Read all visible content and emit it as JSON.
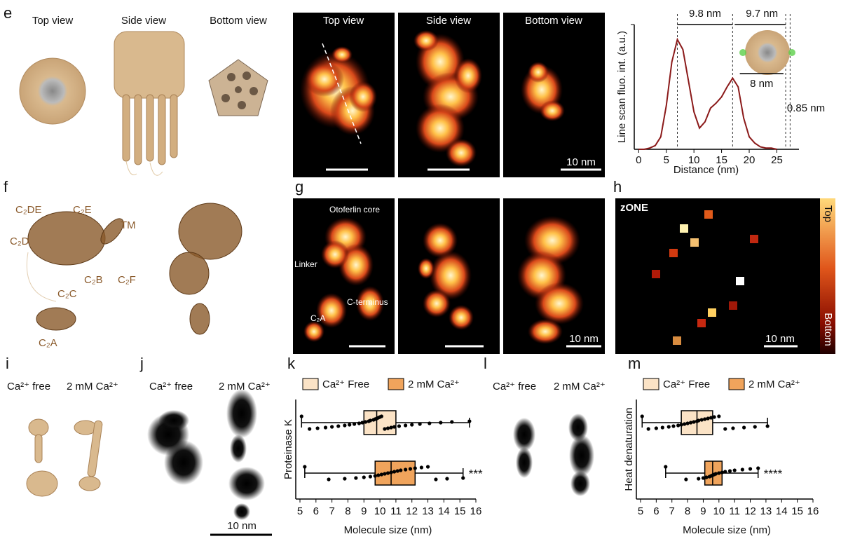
{
  "panels": {
    "e": {
      "label": "e",
      "structure_views": [
        "Top view",
        "Side view",
        "Bottom view"
      ],
      "image_views": [
        "Top view",
        "Side view",
        "Bottom view"
      ],
      "scale_bar": "10 nm"
    },
    "f": {
      "label": "f",
      "domains": [
        "C₂DE",
        "C₂E",
        "TM",
        "C₂D",
        "C₂B",
        "C₂F",
        "C₂C",
        "C₂A"
      ]
    },
    "g": {
      "label": "g",
      "annotations": [
        "Otoferlin core",
        "Linker",
        "C-terminus",
        "C₂A"
      ],
      "scale_bar": "10 nm"
    },
    "h": {
      "label": "h",
      "title": "zONE",
      "colorbar": [
        "Top",
        "Bottom"
      ],
      "scale_bar": "10 nm"
    },
    "i": {
      "label": "i",
      "conditions": [
        "Ca²⁺ free",
        "2 mM Ca²⁺"
      ]
    },
    "j": {
      "label": "j",
      "conditions": [
        "Ca²⁺ free",
        "2 mM Ca²⁺"
      ],
      "scale_bar": "10 nm"
    },
    "l": {
      "label": "l",
      "conditions": [
        "Ca²⁺ free",
        "2 mM Ca²⁺"
      ]
    }
  },
  "chart_data": [
    {
      "type": "line",
      "xlabel": "Distance (nm)",
      "ylabel": "Line scan fluo. int. (a.u.)",
      "xlim": [
        -0.8,
        29
      ],
      "ylim": [
        0,
        1
      ],
      "xticks": [
        0,
        5,
        10,
        15,
        20,
        25
      ],
      "x": [
        0,
        1,
        2,
        3,
        4,
        5,
        6,
        7,
        8,
        9,
        10,
        11,
        12,
        13,
        14,
        15,
        16,
        17,
        18,
        19,
        20,
        21,
        22,
        23,
        24,
        25
      ],
      "series": [
        {
          "color": "#8b1a1a",
          "values": [
            0,
            0,
            0.01,
            0.03,
            0.1,
            0.35,
            0.7,
            0.88,
            0.8,
            0.55,
            0.3,
            0.17,
            0.22,
            0.33,
            0.37,
            0.42,
            0.5,
            0.57,
            0.5,
            0.25,
            0.1,
            0.05,
            0.02,
            0.01,
            0.01,
            0
          ]
        }
      ],
      "reference_lines": [
        7,
        17,
        26.6,
        27.4
      ],
      "annotations": [
        "9.8 nm",
        "9.7 nm",
        "8 nm",
        "0.85 nm"
      ]
    },
    {
      "type": "box",
      "label": "k",
      "ylabel": "Proteinase K",
      "xlabel": "Molecule size (nm)",
      "xlim": [
        5,
        16
      ],
      "xticks": [
        5,
        6,
        7,
        8,
        9,
        10,
        11,
        12,
        13,
        14,
        15,
        16
      ],
      "annotation": "***",
      "series": [
        {
          "name": "Ca²⁺ Free",
          "color": "#fbe3c6",
          "whisker_low": 5.1,
          "q1": 9.0,
          "median": 9.8,
          "q3": 11.0,
          "whisker_high": 15.6,
          "points": [
            5.1,
            5.6,
            6.1,
            6.6,
            7.0,
            7.4,
            7.8,
            8.1,
            8.4,
            8.7,
            8.9,
            9.1,
            9.3,
            9.4,
            9.6,
            9.7,
            9.8,
            9.9,
            10.0,
            10.1,
            10.3,
            10.5,
            10.7,
            10.9,
            11.2,
            11.6,
            12.0,
            12.5,
            13.1,
            13.8,
            14.5,
            15.6
          ]
        },
        {
          "name": "2 mM Ca²⁺",
          "color": "#f0a45c",
          "whisker_low": 5.3,
          "q1": 9.7,
          "median": 10.7,
          "q3": 12.2,
          "whisker_high": 15.2,
          "points": [
            5.3,
            6.8,
            7.8,
            8.5,
            9.0,
            9.4,
            9.7,
            9.9,
            10.1,
            10.3,
            10.5,
            10.7,
            10.9,
            11.1,
            11.3,
            11.6,
            11.9,
            12.2,
            12.6,
            13.0,
            13.5,
            14.2,
            15.2
          ]
        }
      ]
    },
    {
      "type": "box",
      "label": "m",
      "ylabel": "Heat denaturation",
      "xlabel": "Molecule size (nm)",
      "xlim": [
        5,
        16
      ],
      "xticks": [
        5,
        6,
        7,
        8,
        9,
        10,
        11,
        12,
        13,
        14,
        15,
        16
      ],
      "annotation": "****",
      "series": [
        {
          "name": "Ca²⁺ Free",
          "color": "#fbe3c6",
          "whisker_low": 5.1,
          "q1": 7.6,
          "median": 8.6,
          "q3": 9.6,
          "whisker_high": 13.1,
          "points": [
            5.1,
            5.5,
            6.0,
            6.4,
            6.8,
            7.1,
            7.4,
            7.6,
            7.8,
            8.0,
            8.2,
            8.4,
            8.6,
            8.7,
            8.9,
            9.1,
            9.3,
            9.5,
            9.7,
            10.0,
            10.4,
            10.9,
            11.6,
            12.3,
            13.1
          ]
        },
        {
          "name": "2 mM Ca²⁺",
          "color": "#f0a45c",
          "whisker_low": 6.6,
          "q1": 9.1,
          "median": 9.6,
          "q3": 10.2,
          "whisker_high": 12.5,
          "points": [
            6.6,
            7.9,
            8.7,
            9.0,
            9.2,
            9.4,
            9.5,
            9.6,
            9.7,
            9.8,
            10.0,
            10.2,
            10.4,
            10.7,
            11.0,
            11.5,
            12.0,
            12.5
          ]
        }
      ]
    }
  ]
}
